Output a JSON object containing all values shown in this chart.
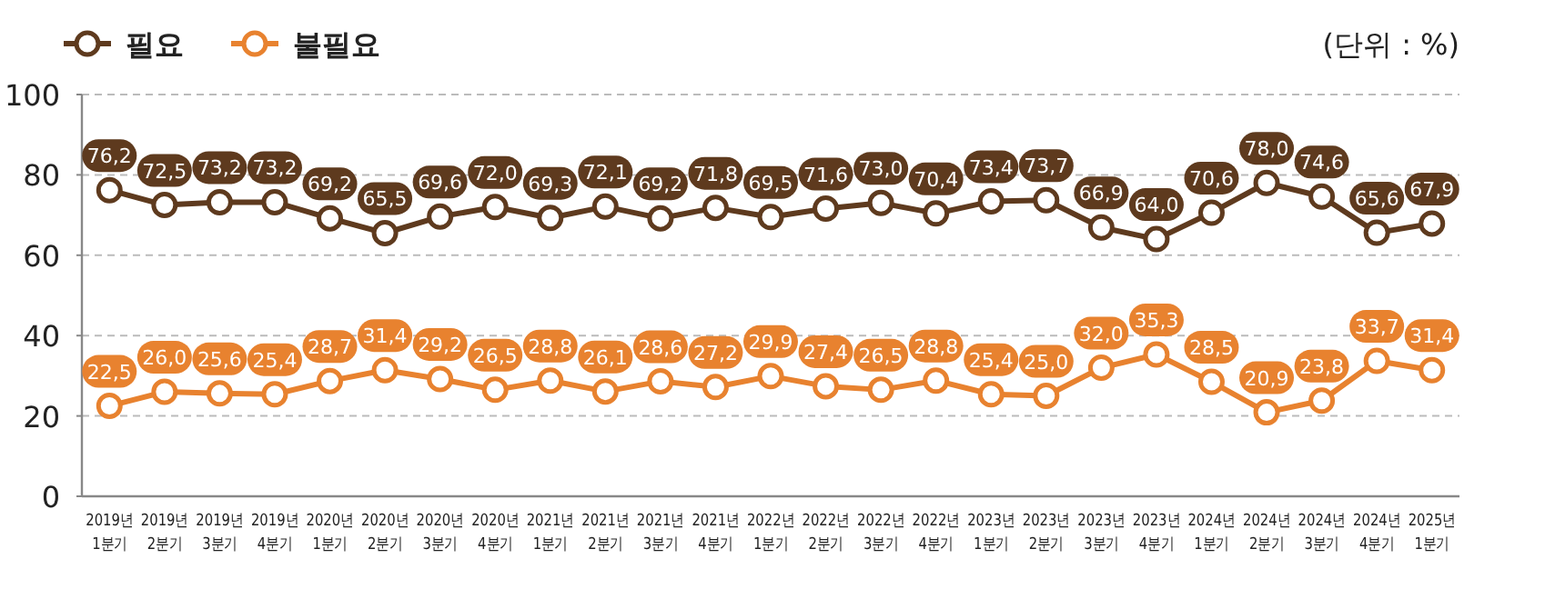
{
  "chart_data": {
    "type": "line",
    "categories": [
      "2019년\n1분기",
      "2019년\n2분기",
      "2019년\n3분기",
      "2019년\n4분기",
      "2020년\n1분기",
      "2020년\n2분기",
      "2020년\n3분기",
      "2020년\n4분기",
      "2021년\n1분기",
      "2021년\n2분기",
      "2021년\n3분기",
      "2021년\n4분기",
      "2022년\n1분기",
      "2022년\n2분기",
      "2022년\n3분기",
      "2022년\n4분기",
      "2023년\n1분기",
      "2023년\n2분기",
      "2023년\n3분기",
      "2023년\n4분기",
      "2024년\n1분기",
      "2024년\n2분기",
      "2024년\n3분기",
      "2024년\n4분기",
      "2025년\n1분기"
    ],
    "series": [
      {
        "name": "필요",
        "color": "#5e3a1e",
        "values": [
          76.2,
          72.5,
          73.2,
          73.2,
          69.2,
          65.5,
          69.6,
          72.0,
          69.3,
          72.1,
          69.2,
          71.8,
          69.5,
          71.6,
          73.0,
          70.4,
          73.4,
          73.7,
          66.9,
          64.0,
          70.6,
          78.0,
          74.6,
          65.6,
          67.9
        ],
        "value_labels": [
          "76,2",
          "72,5",
          "73,2",
          "73,2",
          "69,2",
          "65,5",
          "69,6",
          "72,0",
          "69,3",
          "72,1",
          "69,2",
          "71,8",
          "69,5",
          "71,6",
          "73,0",
          "70,4",
          "73,4",
          "73,7",
          "66,9",
          "64,0",
          "70,6",
          "78,0",
          "74,6",
          "65,6",
          "67,9"
        ]
      },
      {
        "name": "불필요",
        "color": "#e8822f",
        "values": [
          22.5,
          26.0,
          25.6,
          25.4,
          28.7,
          31.4,
          29.2,
          26.5,
          28.8,
          26.1,
          28.6,
          27.2,
          29.9,
          27.4,
          26.5,
          28.8,
          25.4,
          25.0,
          32.0,
          35.3,
          28.5,
          20.9,
          23.8,
          33.7,
          31.4
        ],
        "value_labels": [
          "22,5",
          "26,0",
          "25,6",
          "25,4",
          "28,7",
          "31,4",
          "29,2",
          "26,5",
          "28,8",
          "26,1",
          "28,6",
          "27,2",
          "29,9",
          "27,4",
          "26,5",
          "28,8",
          "25,4",
          "25,0",
          "32,0",
          "35,3",
          "28,5",
          "20,9",
          "23,8",
          "33,7",
          "31,4"
        ]
      }
    ],
    "ylim": [
      0,
      100
    ],
    "yticks": [
      0,
      20,
      40,
      60,
      80,
      100
    ],
    "grid": "y",
    "legend": "top left",
    "marker": "circle",
    "line_style": "solid",
    "annotations": [
      "(단위 : %)"
    ]
  }
}
